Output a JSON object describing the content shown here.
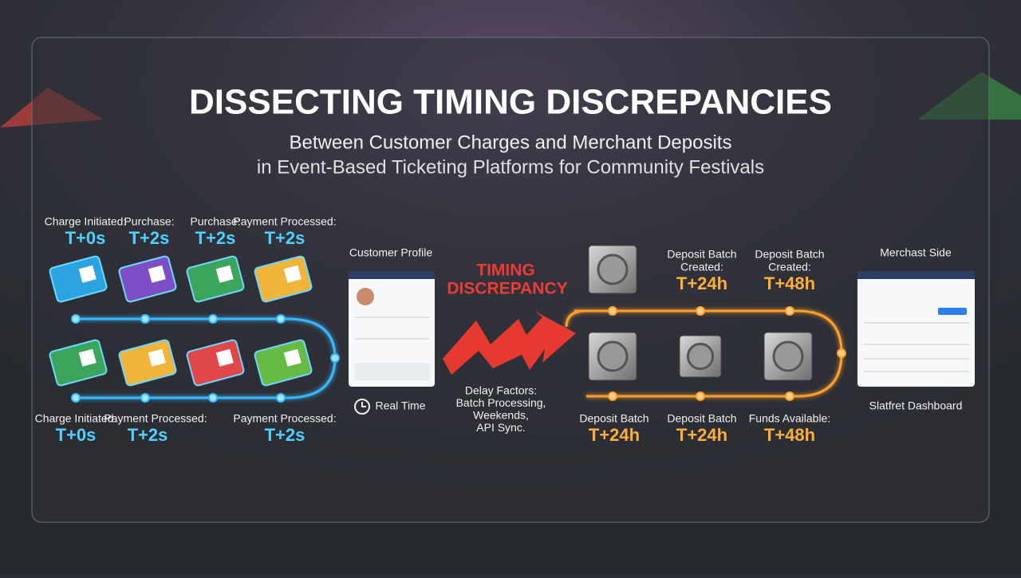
{
  "header": {
    "title": "DISSECTING TIMING DISCREPANCIES",
    "subtitle_line1": "Between Customer Charges and Merchant Deposits",
    "subtitle_line2": "in Event-Based Ticketing Platforms for Community Festivals"
  },
  "customer_top": [
    {
      "label": "Charge Initiated:",
      "time": "T+0s"
    },
    {
      "label": "Purchase:",
      "time": "T+2s"
    },
    {
      "label": "Purchase:",
      "time": "T+2s"
    },
    {
      "label": "Payment Processed:",
      "time": "T+2s"
    }
  ],
  "customer_bottom": [
    {
      "label": "Charge Initiated:",
      "time": "T+0s"
    },
    {
      "label": "Payment Processed:",
      "time": "T+2s"
    },
    {
      "label": "Payment Processed:",
      "time": "T+2s"
    }
  ],
  "customer_profile": {
    "title": "Customer Profile",
    "footer": "Real Time"
  },
  "discrepancy": {
    "line1": "TIMING",
    "line2": "DISCREPANCY",
    "factors": [
      "Delay Factors:",
      "Batch Processing,",
      "Weekends,",
      "API Sync."
    ]
  },
  "merchant_top": [
    {
      "label1": "Deposit Batch",
      "label2": "Created:",
      "time": "T+24h"
    },
    {
      "label1": "Deposit Batch",
      "label2": "Created:",
      "time": "T+48h"
    }
  ],
  "merchant_bottom": [
    {
      "label": "Deposit Batch",
      "time": "T+24h"
    },
    {
      "label": "Deposit Batch",
      "time": "T+24h"
    },
    {
      "label": "Funds Available:",
      "time": "T+48h"
    }
  ],
  "merchant_side": {
    "title": "Merchast Side",
    "footer": "Slatfret Dashboard"
  }
}
